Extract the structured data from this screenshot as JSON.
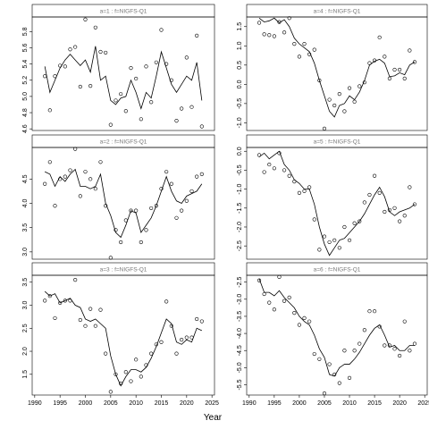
{
  "xlabel": "Year",
  "chart_data": [
    {
      "type": "line",
      "title": "a=1 : f=NIGFS-Q1",
      "x": [
        1992,
        1993,
        1994,
        1995,
        1996,
        1997,
        1998,
        1999,
        2000,
        2001,
        2002,
        2003,
        2004,
        2005,
        2006,
        2007,
        2008,
        2009,
        2010,
        2011,
        2012,
        2013,
        2014,
        2015,
        2016,
        2017,
        2018,
        2019,
        2020,
        2021,
        2022,
        2023
      ],
      "xlim": [
        1989.5,
        2025.5
      ],
      "ylim": [
        4.58,
        5.98
      ],
      "yticks": [
        4.6,
        4.8,
        {
          "value": 5,
          "label": "5.0"
        },
        5.2,
        5.4,
        5.6,
        5.8
      ],
      "series": [
        {
          "mode": "points",
          "color": "#000000",
          "values": [
            5.25,
            4.83,
            5.25,
            5.38,
            5.37,
            5.58,
            5.61,
            5.12,
            5.95,
            5.13,
            5.85,
            5.55,
            5.54,
            4.65,
            4.95,
            5.03,
            4.82,
            5.35,
            5.22,
            4.72,
            5.37,
            4.93,
            5.42,
            5.82,
            5.4,
            5.2,
            4.7,
            4.85,
            5.48,
            4.87,
            5.75,
            4.63
          ]
        },
        {
          "mode": "line",
          "color": "#000000",
          "values": [
            5.37,
            5.05,
            5.2,
            5.35,
            5.45,
            5.52,
            5.45,
            5.38,
            5.45,
            5.3,
            5.62,
            5.2,
            5.25,
            4.95,
            4.9,
            4.98,
            5.0,
            5.2,
            5.05,
            4.85,
            5.05,
            4.98,
            5.25,
            5.55,
            5.35,
            5.15,
            5.05,
            5.15,
            5.25,
            5.2,
            5.42,
            4.95
          ]
        }
      ]
    },
    {
      "type": "line",
      "title": "a=2 : f=NIGFS-Q1",
      "x": [
        1992,
        1993,
        1994,
        1995,
        1996,
        1997,
        1998,
        1999,
        2000,
        2001,
        2002,
        2003,
        2004,
        2005,
        2006,
        2007,
        2008,
        2009,
        2010,
        2011,
        2012,
        2013,
        2014,
        2015,
        2016,
        2017,
        2018,
        2019,
        2020,
        2021,
        2022,
        2023
      ],
      "xlim": [
        1989.5,
        2025.5
      ],
      "ylim": [
        2.85,
        5.15
      ],
      "yticks": [
        {
          "value": 3,
          "label": "3.0"
        },
        3.5,
        {
          "value": 4,
          "label": "4.0"
        },
        4.5
      ],
      "series": [
        {
          "mode": "points",
          "color": "#000000",
          "values": [
            4.4,
            4.85,
            3.95,
            4.5,
            4.55,
            4.68,
            5.12,
            4.15,
            4.65,
            4.5,
            4.3,
            4.85,
            3.95,
            2.88,
            3.45,
            3.2,
            3.65,
            3.85,
            3.85,
            3.2,
            3.45,
            3.9,
            3.95,
            4.3,
            4.65,
            4.4,
            3.7,
            3.85,
            4.05,
            4.25,
            4.55,
            4.6
          ]
        },
        {
          "mode": "line",
          "color": "#000000",
          "values": [
            4.65,
            4.6,
            4.35,
            4.55,
            4.45,
            4.6,
            4.7,
            4.35,
            4.35,
            4.3,
            4.35,
            4.6,
            4.0,
            3.75,
            3.4,
            3.3,
            3.55,
            3.85,
            3.8,
            3.4,
            3.55,
            3.7,
            3.95,
            4.25,
            4.55,
            4.25,
            4.05,
            4.0,
            4.15,
            4.2,
            4.25,
            4.4
          ]
        }
      ]
    },
    {
      "type": "line",
      "title": "a=3 : f=NIGFS-Q1",
      "x": [
        1992,
        1993,
        1994,
        1995,
        1996,
        1997,
        1998,
        1999,
        2000,
        2001,
        2002,
        2003,
        2004,
        2005,
        2006,
        2007,
        2008,
        2009,
        2010,
        2011,
        2012,
        2013,
        2014,
        2015,
        2016,
        2017,
        2018,
        2019,
        2020,
        2021,
        2022,
        2023
      ],
      "xlim": [
        1989.5,
        2025.5
      ],
      "xticks": [
        1990,
        1995,
        2000,
        2005,
        2010,
        2015,
        2020,
        2025
      ],
      "ylim": [
        1.05,
        3.65
      ],
      "yticks": [
        1.5,
        {
          "value": 2,
          "label": "2.0"
        },
        2.5,
        {
          "value": 3,
          "label": "3.0"
        },
        3.5
      ],
      "series": [
        {
          "mode": "points",
          "color": "#000000",
          "values": [
            3.1,
            3.2,
            2.72,
            3.05,
            3.1,
            3.1,
            3.55,
            2.68,
            2.55,
            2.92,
            2.55,
            2.9,
            1.95,
            1.12,
            1.5,
            1.3,
            1.55,
            1.35,
            1.82,
            1.45,
            1.7,
            1.95,
            2.15,
            2.2,
            3.08,
            2.55,
            1.95,
            2.25,
            2.3,
            2.3,
            2.7,
            2.65
          ]
        },
        {
          "mode": "line",
          "color": "#000000",
          "values": [
            3.3,
            3.2,
            3.25,
            3.05,
            3.1,
            3.15,
            3.0,
            2.95,
            2.7,
            2.65,
            2.7,
            2.6,
            2.5,
            1.9,
            1.5,
            1.25,
            1.45,
            1.6,
            1.6,
            1.55,
            1.65,
            1.85,
            2.1,
            2.4,
            2.7,
            2.6,
            2.2,
            2.15,
            2.25,
            2.2,
            2.5,
            2.45
          ]
        }
      ]
    },
    {
      "type": "line",
      "title": "a=4 : f=NIGFS-Q1",
      "x": [
        1992,
        1993,
        1994,
        1995,
        1996,
        1997,
        1998,
        1999,
        2000,
        2001,
        2002,
        2003,
        2004,
        2005,
        2006,
        2007,
        2008,
        2009,
        2010,
        2011,
        2012,
        2013,
        2014,
        2015,
        2016,
        2017,
        2018,
        2019,
        2020,
        2021,
        2022,
        2023
      ],
      "xlim": [
        1989.5,
        2025.5
      ],
      "ylim": [
        -1.2,
        1.75
      ],
      "yticks": [
        {
          "value": -1,
          "label": "-1.0"
        },
        -0.5,
        {
          "value": 0,
          "label": "0.0"
        },
        0.5,
        {
          "value": 1,
          "label": "1.0"
        },
        1.5
      ],
      "series": [
        {
          "mode": "points",
          "color": "#000000",
          "values": [
            1.6,
            1.3,
            1.28,
            1.25,
            1.62,
            1.35,
            1.72,
            1.05,
            0.72,
            1.05,
            0.78,
            0.9,
            0.1,
            -1.15,
            -0.4,
            -0.55,
            -0.25,
            -0.7,
            -0.1,
            -0.45,
            -0.05,
            0.05,
            0.55,
            0.62,
            1.22,
            0.72,
            0.15,
            0.38,
            0.38,
            0.15,
            0.88,
            0.58
          ]
        },
        {
          "mode": "line",
          "color": "#000000",
          "values": [
            1.72,
            1.62,
            1.65,
            1.72,
            1.6,
            1.68,
            1.5,
            1.2,
            1.05,
            0.95,
            0.85,
            0.55,
            0.1,
            -0.3,
            -0.7,
            -0.85,
            -0.55,
            -0.5,
            -0.3,
            -0.4,
            -0.2,
            0.1,
            0.5,
            0.6,
            0.65,
            0.55,
            0.2,
            0.22,
            0.3,
            0.25,
            0.5,
            0.58
          ]
        }
      ]
    },
    {
      "type": "line",
      "title": "a=5 : f=NIGFS-Q1",
      "x": [
        1992,
        1993,
        1994,
        1995,
        1996,
        1997,
        1998,
        1999,
        2000,
        2001,
        2002,
        2003,
        2004,
        2005,
        2006,
        2007,
        2008,
        2009,
        2010,
        2011,
        2012,
        2013,
        2014,
        2015,
        2016,
        2017,
        2018,
        2019,
        2020,
        2021,
        2022,
        2023
      ],
      "xlim": [
        1989.5,
        2025.5
      ],
      "ylim": [
        -2.85,
        0.1
      ],
      "yticks": [
        -2.5,
        {
          "value": -2,
          "label": "-2.0"
        },
        -1.5,
        {
          "value": -1,
          "label": "-1.0"
        },
        -0.5,
        {
          "value": 0,
          "label": "0.0"
        }
      ],
      "series": [
        {
          "mode": "points",
          "color": "#000000",
          "values": [
            -0.1,
            -0.55,
            -0.35,
            -0.45,
            -0.05,
            -0.5,
            -0.65,
            -0.8,
            -1.1,
            -1.05,
            -0.95,
            -1.8,
            -2.6,
            -2.25,
            -2.4,
            -2.35,
            -2.55,
            -2.0,
            -2.35,
            -1.9,
            -1.85,
            -1.35,
            -1.15,
            -0.65,
            -1.1,
            -1.6,
            -1.55,
            -1.5,
            -1.85,
            -1.7,
            -0.95,
            -1.4
          ]
        },
        {
          "mode": "line",
          "color": "#000000",
          "values": [
            -0.15,
            -0.05,
            -0.2,
            -0.1,
            0,
            -0.35,
            -0.5,
            -0.75,
            -0.85,
            -1.0,
            -1.0,
            -1.4,
            -2.0,
            -2.45,
            -2.75,
            -2.55,
            -2.35,
            -2.3,
            -2.15,
            -2.0,
            -1.85,
            -1.65,
            -1.4,
            -1.15,
            -0.95,
            -1.2,
            -1.6,
            -1.7,
            -1.6,
            -1.55,
            -1.5,
            -1.4
          ]
        }
      ]
    },
    {
      "type": "line",
      "title": "a=6 : f=NIGFS-Q1",
      "x": [
        1992,
        1993,
        1994,
        1995,
        1996,
        1997,
        1998,
        1999,
        2000,
        2001,
        2002,
        2003,
        2004,
        2005,
        2006,
        2007,
        2008,
        2009,
        2010,
        2011,
        2012,
        2013,
        2014,
        2015,
        2016,
        2017,
        2018,
        2019,
        2020,
        2021,
        2022,
        2023
      ],
      "xlim": [
        1989.5,
        2025.5
      ],
      "xticks": [
        1990,
        1995,
        2000,
        2005,
        2010,
        2015,
        2020,
        2025
      ],
      "ylim": [
        -5.8,
        -2.3
      ],
      "yticks": [
        -5.5,
        {
          "value": -5,
          "label": "-5.0"
        },
        -4.5,
        {
          "value": -4,
          "label": "-4.0"
        },
        -3.5,
        {
          "value": -3,
          "label": "-3.0"
        },
        -2.5
      ],
      "series": [
        {
          "mode": "points",
          "color": "#000000",
          "values": [
            -2.45,
            -2.85,
            -3.1,
            -3.3,
            -2.35,
            -3.05,
            -2.95,
            -3.4,
            -3.75,
            -3.55,
            -3.65,
            -4.6,
            -4.75,
            -5.75,
            -4.9,
            -5.2,
            -5.45,
            -4.5,
            -5.3,
            -4.5,
            -4.3,
            -3.9,
            -3.35,
            -3.35,
            -3.8,
            -4.35,
            -4.35,
            -4.45,
            -4.65,
            -3.65,
            -4.5,
            -4.3
          ]
        },
        {
          "mode": "line",
          "color": "#000000",
          "values": [
            -2.4,
            -2.8,
            -2.8,
            -2.9,
            -2.75,
            -2.95,
            -3.1,
            -3.25,
            -3.5,
            -3.65,
            -3.75,
            -4.05,
            -4.45,
            -4.7,
            -5.2,
            -5.25,
            -5.0,
            -4.9,
            -4.9,
            -4.75,
            -4.55,
            -4.3,
            -4.05,
            -3.85,
            -3.75,
            -4.05,
            -4.4,
            -4.35,
            -4.5,
            -4.5,
            -4.35,
            -4.35
          ]
        }
      ]
    }
  ]
}
